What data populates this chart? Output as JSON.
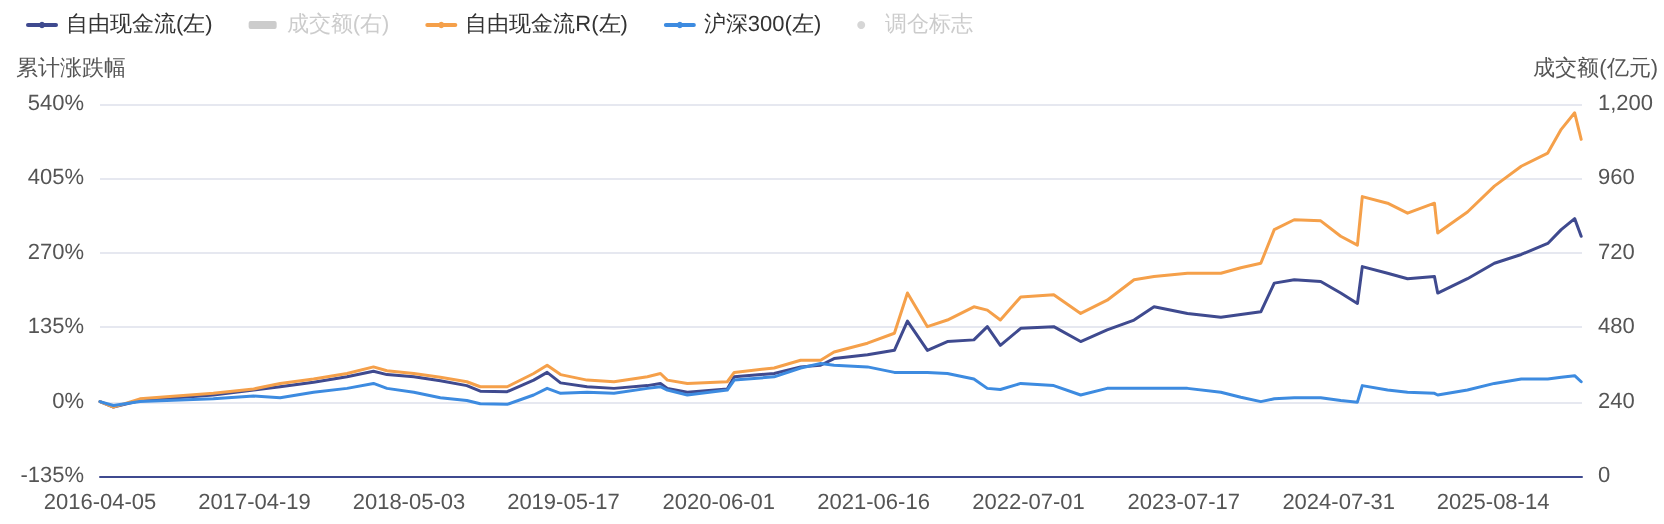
{
  "chart_data": {
    "type": "line",
    "ylabel": "累计涨跌幅",
    "y2label": "成交额(亿元)",
    "xlim": [
      "2016-04-05",
      "2026-03-20"
    ],
    "xticks": [
      "2016-04-05",
      "2017-04-19",
      "2018-05-03",
      "2019-05-17",
      "2020-06-01",
      "2021-06-16",
      "2022-07-01",
      "2023-07-17",
      "2024-07-31",
      "2025-08-14"
    ],
    "x": [
      "2016-04-05",
      "2016-05-08",
      "2016-07-12",
      "2017-01-08",
      "2017-04-17",
      "2017-06-21",
      "2017-09-11",
      "2017-12-02",
      "2018-02-05",
      "2018-03-10",
      "2018-05-15",
      "2018-07-19",
      "2018-09-22",
      "2018-10-25",
      "2018-12-30",
      "2019-03-05",
      "2019-04-07",
      "2019-05-10",
      "2019-07-14",
      "2019-09-18",
      "2019-12-09",
      "2020-01-10",
      "2020-01-27",
      "2020-03-16",
      "2020-06-22",
      "2020-07-09",
      "2020-10-15",
      "2020-12-19",
      "2021-02-06",
      "2021-03-11",
      "2021-06-01",
      "2021-08-06",
      "2021-09-07",
      "2021-10-26",
      "2021-12-14",
      "2022-02-17",
      "2022-03-22",
      "2022-04-23",
      "2022-06-12",
      "2022-09-01",
      "2022-11-06",
      "2023-01-10",
      "2023-03-17",
      "2023-05-05",
      "2023-07-26",
      "2023-10-16",
      "2023-12-04",
      "2024-01-22",
      "2024-02-24",
      "2024-04-13",
      "2024-06-17",
      "2024-08-05",
      "2024-09-15",
      "2024-09-27",
      "2024-11-28",
      "2025-01-16",
      "2025-03-23",
      "2025-03-31",
      "2025-06-12",
      "2025-08-17",
      "2025-10-22",
      "2025-12-26",
      "2026-01-28",
      "2026-03-02",
      "2026-03-18"
    ],
    "series": [
      {
        "name": "自由现金流(左)",
        "color": "#3f4a8f",
        "values": [
          0,
          -10,
          2,
          12,
          21,
          27,
          35,
          45,
          55,
          49,
          45,
          38,
          29,
          19,
          18,
          39,
          53,
          34,
          27,
          24,
          29,
          33,
          24,
          17,
          23,
          45,
          51,
          63,
          66,
          78,
          85,
          93,
          146,
          93,
          109,
          112,
          136,
          102,
          133,
          136,
          109,
          130,
          148,
          172,
          160,
          153,
          158,
          163,
          215,
          221,
          218,
          197,
          178,
          245,
          233,
          223,
          227,
          197,
          223,
          251,
          267,
          287,
          312,
          332,
          300
        ]
      },
      {
        "name": "成交额(右)",
        "type": "bar",
        "color": "#cccccc",
        "values": [
          null,
          null,
          null,
          null,
          null,
          null,
          null,
          null,
          null,
          null,
          null,
          null,
          null,
          null,
          null,
          null,
          null,
          null,
          null,
          null,
          null,
          null,
          null,
          null,
          null,
          null,
          null,
          null,
          null,
          null,
          null,
          null,
          null,
          null,
          null,
          null,
          null,
          null,
          null,
          null,
          null,
          null,
          null,
          null,
          null,
          null,
          null,
          null,
          null,
          null,
          null,
          null,
          null,
          null,
          null,
          null,
          null,
          null,
          null,
          null,
          null,
          null,
          null,
          null,
          null
        ]
      },
      {
        "name": "自由现金流R(左)",
        "color": "#f5a04a",
        "values": [
          0,
          -10,
          5,
          15,
          23,
          33,
          41,
          51,
          63,
          56,
          51,
          44,
          36,
          27,
          27,
          51,
          66,
          49,
          39,
          36,
          45,
          51,
          39,
          33,
          36,
          53,
          61,
          75,
          75,
          90,
          106,
          124,
          197,
          136,
          148,
          172,
          166,
          148,
          190,
          194,
          160,
          184,
          221,
          227,
          233,
          233,
          243,
          251,
          312,
          330,
          328,
          300,
          284,
          372,
          360,
          342,
          360,
          306,
          344,
          391,
          427,
          451,
          494,
          524,
          476
        ]
      },
      {
        "name": "沪深300(左)",
        "color": "#3d8be0",
        "values": [
          0,
          -7,
          0,
          5,
          10,
          7,
          17,
          24,
          33,
          24,
          17,
          7,
          2,
          -4,
          -5,
          12,
          24,
          15,
          17,
          15,
          24,
          27,
          21,
          12,
          21,
          39,
          45,
          61,
          69,
          66,
          63,
          53,
          53,
          53,
          51,
          41,
          24,
          22,
          33,
          29,
          12,
          24,
          24,
          24,
          24,
          17,
          8,
          0,
          5,
          7,
          7,
          2,
          -1,
          29,
          21,
          17,
          15,
          12,
          21,
          33,
          41,
          41,
          44,
          47,
          36
        ]
      },
      {
        "name": "调仓标志",
        "type": "scatter",
        "color": "#cccccc",
        "values": [
          null,
          null,
          null,
          null,
          null,
          null,
          null,
          null,
          null,
          null,
          null,
          null,
          null,
          null,
          null,
          null,
          null,
          null,
          null,
          null,
          null,
          null,
          null,
          null,
          null,
          null,
          null,
          null,
          null,
          null,
          null,
          null,
          null,
          null,
          null,
          null,
          null,
          null,
          null,
          null,
          null,
          null,
          null,
          null,
          null,
          null,
          null,
          null,
          null,
          null,
          null,
          null,
          null,
          null,
          null,
          null,
          null,
          null,
          null,
          null,
          null,
          null,
          null,
          null,
          null
        ]
      }
    ],
    "ylim": [
      -135,
      540
    ],
    "yticks": [
      {
        "value": -135,
        "label": "-135%"
      },
      {
        "value": 0,
        "label": "0%"
      },
      {
        "value": 135,
        "label": "135%"
      },
      {
        "value": 270,
        "label": "270%"
      },
      {
        "value": 405,
        "label": "405%"
      },
      {
        "value": 540,
        "label": "540%"
      }
    ],
    "y2lim": [
      0,
      1200
    ],
    "y2ticks": [
      0,
      240,
      480,
      720,
      960,
      {
        "value": 1200,
        "label": "1,200"
      }
    ],
    "grid": "y",
    "legend": "top left",
    "marker": "none",
    "line_style": "solid"
  }
}
